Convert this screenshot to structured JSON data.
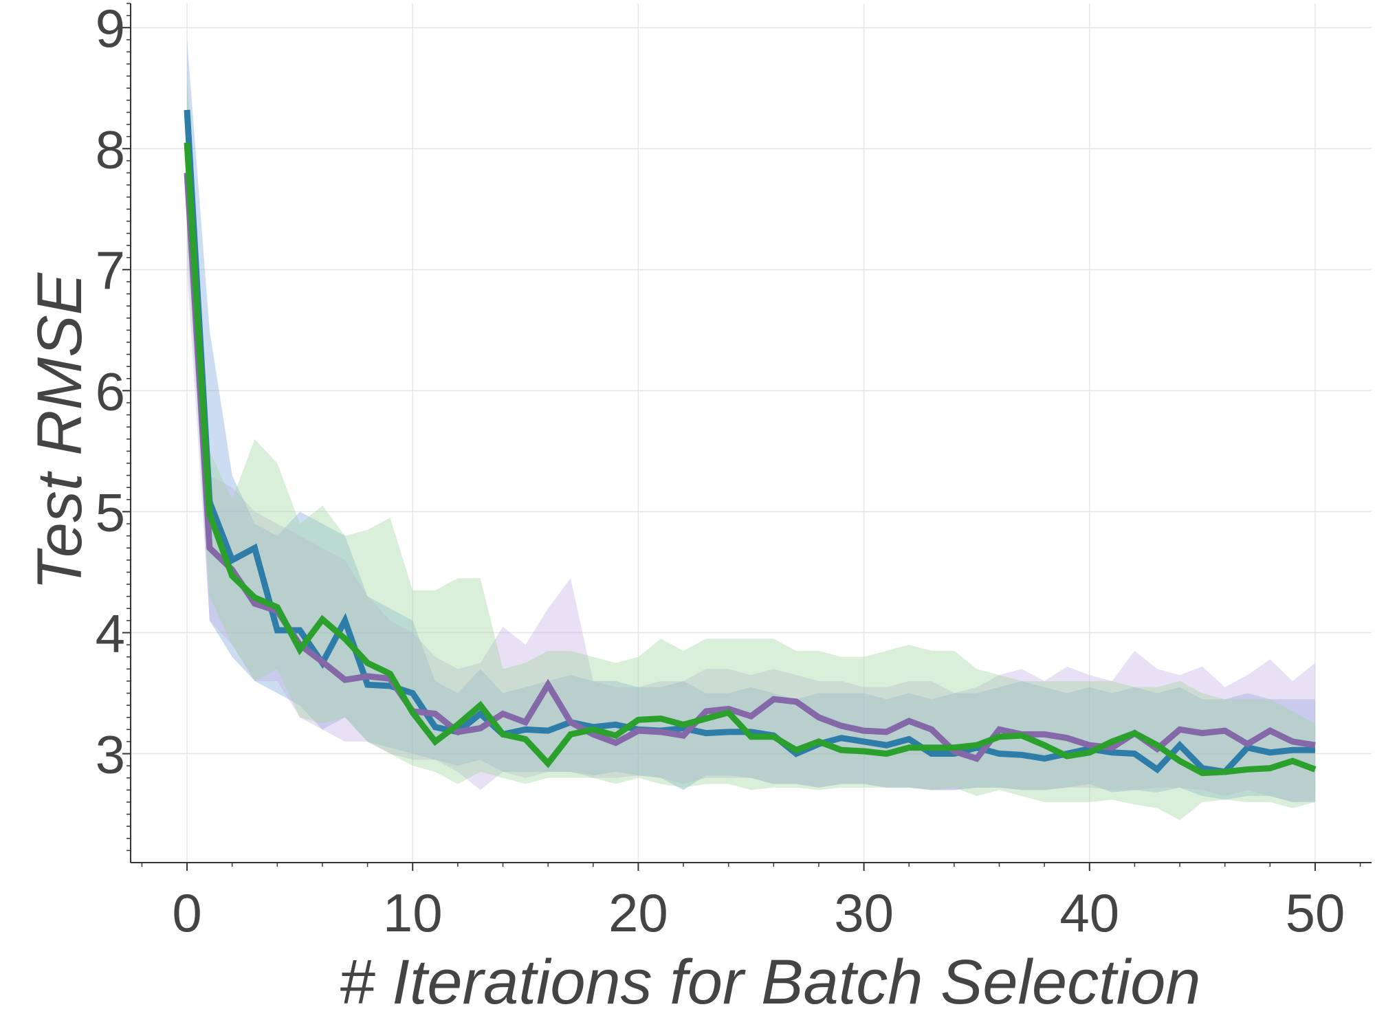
{
  "chart_data": {
    "type": "line",
    "title": "",
    "xlabel": "# Iterations for Batch Selection",
    "ylabel": "Test RMSE",
    "xlim": [
      -2.5,
      52.5
    ],
    "ylim": [
      2.1,
      9.2
    ],
    "xticks": [
      0,
      10,
      20,
      30,
      40,
      50
    ],
    "yticks": [
      3,
      4,
      5,
      6,
      7,
      8,
      9
    ],
    "grid": true,
    "legend": "none",
    "x": [
      0,
      1,
      2,
      3,
      4,
      5,
      6,
      7,
      8,
      9,
      10,
      11,
      12,
      13,
      14,
      15,
      16,
      17,
      18,
      19,
      20,
      21,
      22,
      23,
      24,
      25,
      26,
      27,
      28,
      29,
      30,
      31,
      32,
      33,
      34,
      35,
      36,
      37,
      38,
      39,
      40,
      41,
      42,
      43,
      44,
      45,
      46,
      47,
      48,
      49,
      50
    ],
    "series": [
      {
        "color": "#2e7ca8",
        "fill": "#7aa6dc",
        "values": [
          8.32,
          5.08,
          4.6,
          4.7,
          4.02,
          4.02,
          3.75,
          4.1,
          3.57,
          3.56,
          3.5,
          3.22,
          3.18,
          3.33,
          3.16,
          3.2,
          3.19,
          3.26,
          3.22,
          3.24,
          3.2,
          3.19,
          3.21,
          3.17,
          3.18,
          3.18,
          3.15,
          3.0,
          3.08,
          3.13,
          3.1,
          3.07,
          3.12,
          3.0,
          3.0,
          3.05,
          3.0,
          2.99,
          2.96,
          3.0,
          3.04,
          3.01,
          3.0,
          2.87,
          3.07,
          2.88,
          2.85,
          3.05,
          3.01,
          3.03,
          3.03
        ],
        "lower": [
          7.5,
          4.1,
          3.8,
          3.6,
          3.5,
          3.4,
          3.2,
          3.3,
          3.1,
          3.05,
          3.0,
          2.95,
          2.9,
          2.95,
          2.85,
          2.85,
          2.85,
          2.85,
          2.82,
          2.85,
          2.82,
          2.8,
          2.7,
          2.82,
          2.82,
          2.8,
          2.75,
          2.75,
          2.72,
          2.75,
          2.75,
          2.72,
          2.72,
          2.7,
          2.7,
          2.72,
          2.72,
          2.7,
          2.7,
          2.72,
          2.75,
          2.68,
          2.7,
          2.68,
          2.72,
          2.65,
          2.62,
          2.65,
          2.65,
          2.6,
          2.6
        ],
        "upper": [
          8.9,
          6.5,
          5.3,
          4.9,
          4.8,
          5.0,
          4.9,
          4.8,
          4.3,
          4.2,
          4.1,
          3.6,
          3.5,
          3.7,
          3.5,
          3.55,
          3.6,
          3.65,
          3.6,
          3.6,
          3.55,
          3.55,
          3.6,
          3.5,
          3.5,
          3.55,
          3.5,
          3.45,
          3.5,
          3.5,
          3.5,
          3.45,
          3.5,
          3.45,
          3.5,
          3.5,
          3.55,
          3.6,
          3.55,
          3.5,
          3.55,
          3.5,
          3.55,
          3.5,
          3.55,
          3.45,
          3.45,
          3.5,
          3.45,
          3.45,
          3.45
        ]
      },
      {
        "color": "#8468a8",
        "fill": "#c2aee2",
        "values": [
          7.8,
          4.7,
          4.52,
          4.24,
          4.18,
          3.9,
          3.76,
          3.61,
          3.64,
          3.62,
          3.35,
          3.33,
          3.18,
          3.21,
          3.33,
          3.26,
          3.57,
          3.26,
          3.16,
          3.09,
          3.19,
          3.18,
          3.15,
          3.35,
          3.37,
          3.31,
          3.45,
          3.43,
          3.3,
          3.23,
          3.19,
          3.18,
          3.27,
          3.2,
          3.02,
          2.96,
          3.2,
          3.16,
          3.16,
          3.13,
          3.07,
          3.05,
          3.17,
          3.04,
          3.2,
          3.17,
          3.19,
          3.08,
          3.19,
          3.1,
          3.07
        ],
        "lower": [
          7.0,
          4.1,
          3.9,
          3.6,
          3.6,
          3.3,
          3.2,
          3.1,
          3.1,
          3.0,
          2.95,
          2.95,
          2.85,
          2.7,
          2.85,
          2.8,
          2.85,
          2.85,
          2.8,
          2.8,
          2.82,
          2.8,
          2.75,
          2.8,
          2.8,
          2.8,
          2.75,
          2.75,
          2.72,
          2.75,
          2.75,
          2.72,
          2.72,
          2.7,
          2.7,
          2.72,
          2.72,
          2.7,
          2.7,
          2.72,
          2.72,
          2.7,
          2.7,
          2.72,
          2.72,
          2.7,
          2.65,
          2.7,
          2.65,
          2.6,
          2.62
        ],
        "upper": [
          8.3,
          5.3,
          5.2,
          5.0,
          4.9,
          4.8,
          4.7,
          4.6,
          4.3,
          4.1,
          4.0,
          3.8,
          3.7,
          3.75,
          4.05,
          3.9,
          4.2,
          4.45,
          3.6,
          3.55,
          3.55,
          3.6,
          3.6,
          3.7,
          3.7,
          3.65,
          3.7,
          3.65,
          3.6,
          3.6,
          3.55,
          3.55,
          3.6,
          3.6,
          3.5,
          3.55,
          3.65,
          3.7,
          3.6,
          3.72,
          3.65,
          3.6,
          3.85,
          3.7,
          3.65,
          3.72,
          3.55,
          3.65,
          3.78,
          3.6,
          3.75
        ]
      },
      {
        "color": "#2ca02c",
        "fill": "#9ed69e",
        "values": [
          8.05,
          4.98,
          4.47,
          4.29,
          4.21,
          3.86,
          4.11,
          3.95,
          3.75,
          3.66,
          3.34,
          3.1,
          3.24,
          3.4,
          3.16,
          3.12,
          2.92,
          3.16,
          3.2,
          3.15,
          3.28,
          3.29,
          3.24,
          3.29,
          3.34,
          3.14,
          3.14,
          3.03,
          3.1,
          3.03,
          3.02,
          3.0,
          3.05,
          3.05,
          3.05,
          3.07,
          3.14,
          3.15,
          3.07,
          2.98,
          3.01,
          3.1,
          3.17,
          3.07,
          2.94,
          2.84,
          2.85,
          2.87,
          2.88,
          2.94,
          2.87
        ],
        "lower": [
          7.2,
          4.3,
          3.9,
          3.6,
          3.7,
          3.3,
          3.25,
          3.3,
          3.1,
          3.0,
          2.9,
          2.85,
          2.75,
          2.85,
          2.8,
          2.75,
          2.8,
          2.8,
          2.8,
          2.75,
          2.8,
          2.75,
          2.72,
          2.75,
          2.75,
          2.7,
          2.72,
          2.72,
          2.7,
          2.72,
          2.72,
          2.72,
          2.72,
          2.7,
          2.72,
          2.65,
          2.7,
          2.65,
          2.6,
          2.6,
          2.6,
          2.62,
          2.58,
          2.55,
          2.45,
          2.6,
          2.62,
          2.6,
          2.6,
          2.55,
          2.6
        ],
        "upper": [
          8.6,
          5.5,
          5.1,
          5.6,
          5.4,
          4.9,
          5.05,
          4.8,
          4.85,
          4.95,
          4.35,
          4.35,
          4.45,
          4.45,
          3.7,
          3.75,
          3.85,
          3.85,
          3.8,
          3.75,
          3.8,
          3.95,
          3.85,
          3.95,
          3.95,
          3.95,
          3.95,
          3.85,
          3.85,
          3.8,
          3.8,
          3.85,
          3.9,
          3.85,
          3.85,
          3.7,
          3.65,
          3.6,
          3.6,
          3.6,
          3.6,
          3.6,
          3.55,
          3.55,
          3.6,
          3.5,
          3.45,
          3.45,
          3.45,
          3.35,
          3.25
        ]
      }
    ]
  }
}
